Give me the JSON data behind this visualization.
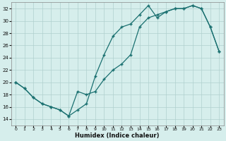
{
  "xlabel": "Humidex (Indice chaleur)",
  "bg_color": "#d6eeec",
  "grid_color": "#b0d0ce",
  "line_color": "#1a7070",
  "xlim": [
    -0.5,
    23.5
  ],
  "ylim": [
    13,
    33
  ],
  "yticks": [
    14,
    16,
    18,
    20,
    22,
    24,
    26,
    28,
    30,
    32
  ],
  "xticks": [
    0,
    1,
    2,
    3,
    4,
    5,
    6,
    7,
    8,
    9,
    10,
    11,
    12,
    13,
    14,
    15,
    16,
    17,
    18,
    19,
    20,
    21,
    22,
    23
  ],
  "line1_x": [
    0,
    1,
    2,
    3,
    4,
    5,
    6,
    7,
    8,
    9,
    10,
    11,
    12,
    13,
    14,
    15,
    16,
    17,
    18,
    19,
    20,
    21,
    22,
    23
  ],
  "line1_y": [
    20.0,
    19.0,
    17.5,
    16.5,
    16.0,
    15.5,
    14.5,
    15.5,
    16.5,
    21.0,
    24.5,
    27.5,
    29.0,
    29.5,
    31.0,
    32.5,
    30.5,
    31.5,
    32.0,
    32.0,
    32.5,
    32.0,
    29.0,
    25.0
  ],
  "line2_x": [
    0,
    1,
    2,
    3,
    4,
    5,
    6,
    7,
    8,
    9,
    10,
    11,
    12,
    13,
    14,
    15,
    16,
    17,
    18,
    19,
    20,
    21,
    22,
    23
  ],
  "line2_y": [
    20.0,
    19.0,
    17.5,
    16.5,
    16.0,
    15.5,
    14.5,
    18.5,
    18.0,
    18.5,
    20.5,
    22.0,
    23.0,
    24.5,
    29.0,
    30.5,
    31.0,
    31.5,
    32.0,
    32.0,
    32.5,
    32.0,
    29.0,
    25.0
  ]
}
